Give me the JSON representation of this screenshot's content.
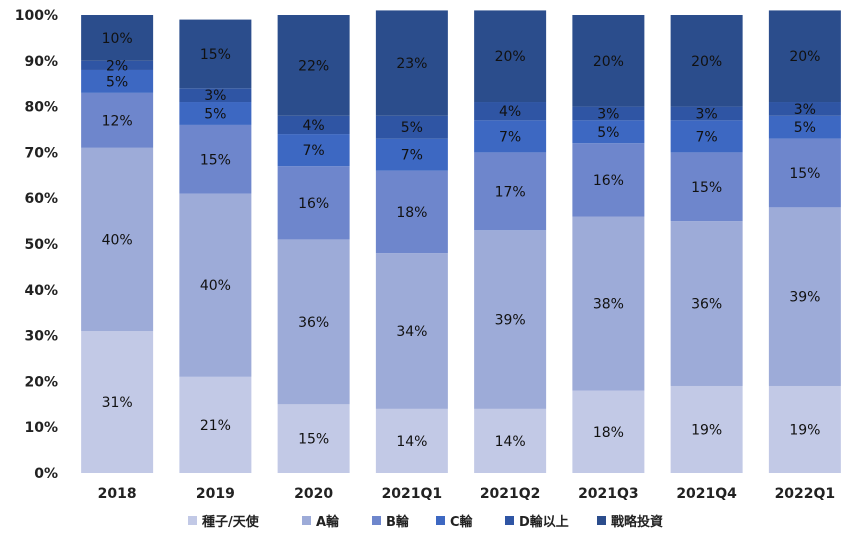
{
  "chart_data": {
    "type": "bar",
    "stacked": true,
    "percent": true,
    "categories": [
      "2018",
      "2019",
      "2020",
      "2021Q1",
      "2021Q2",
      "2021Q3",
      "2021Q4",
      "2022Q1"
    ],
    "series": [
      {
        "name": "種子/天使",
        "color": "#c2c9e6",
        "values": [
          31,
          21,
          15,
          14,
          14,
          18,
          19,
          19
        ],
        "labels": [
          "31%",
          "21%",
          "15%",
          "14%",
          "14%",
          "18%",
          "19%",
          "19%"
        ]
      },
      {
        "name": "A輪",
        "color": "#9dabd8",
        "values": [
          40,
          40,
          36,
          34,
          39,
          38,
          36,
          39
        ],
        "labels": [
          "40%",
          "40%",
          "36%",
          "34%",
          "39%",
          "38%",
          "36%",
          "39%"
        ]
      },
      {
        "name": "B輪",
        "color": "#6e86cc",
        "values": [
          12,
          15,
          16,
          18,
          17,
          16,
          15,
          15
        ],
        "labels": [
          "12%",
          "15%",
          "16%",
          "18%",
          "17%",
          "16%",
          "15%",
          "15%"
        ]
      },
      {
        "name": "C輪",
        "color": "#3d68c2",
        "values": [
          5,
          5,
          7,
          7,
          7,
          5,
          7,
          5
        ],
        "labels": [
          "5%",
          "5%",
          "7%",
          "7%",
          "7%",
          "5%",
          "7%",
          "5%"
        ]
      },
      {
        "name": "D輪以上",
        "color": "#2f55a4",
        "values": [
          2,
          3,
          4,
          5,
          4,
          3,
          3,
          3
        ],
        "labels": [
          "2%",
          "3%",
          "4%",
          "5%",
          "4%",
          "3%",
          "3%",
          "3%"
        ]
      },
      {
        "name": "戰略投資",
        "color": "#2b4d8c",
        "values": [
          10,
          15,
          22,
          23,
          20,
          20,
          20,
          20
        ],
        "labels": [
          "10%",
          "15%",
          "22%",
          "23%",
          "20%",
          "20%",
          "20%",
          "20%"
        ]
      }
    ],
    "ylim": [
      0,
      100
    ],
    "yticks": [
      "0%",
      "10%",
      "20%",
      "30%",
      "40%",
      "50%",
      "60%",
      "70%",
      "80%",
      "90%",
      "100%"
    ],
    "grid": false,
    "legend": "bottom"
  }
}
